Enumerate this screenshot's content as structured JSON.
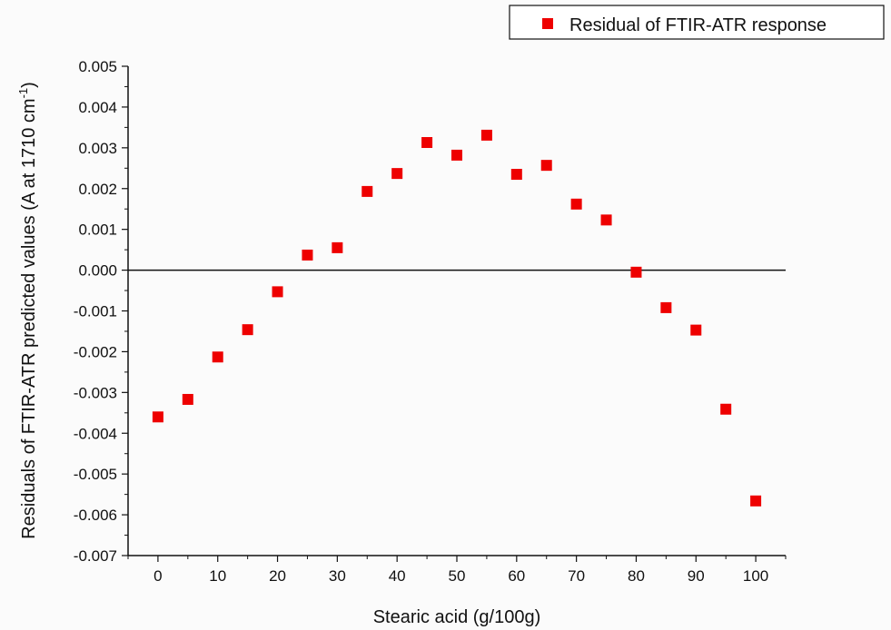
{
  "chart_data": {
    "type": "scatter",
    "xlabel": "Stearic acid (g/100g)",
    "ylabel": "Residuals of FTIR-ATR predicted values (A at 1710 cm",
    "ylabel_superscript": "-1",
    "ylabel_suffix": ")",
    "xlim": [
      -5,
      105
    ],
    "ylim": [
      -0.007,
      0.005
    ],
    "x_ticks": [
      "0",
      "10",
      "20",
      "30",
      "40",
      "50",
      "60",
      "70",
      "80",
      "90",
      "100"
    ],
    "y_ticks": [
      "0.005",
      "0.004",
      "0.003",
      "0.002",
      "0.001",
      "0.000",
      "-0.001",
      "-0.002",
      "-0.003",
      "-0.004",
      "-0.005",
      "-0.006",
      "-0.007"
    ],
    "grid": false,
    "zero_line": 0,
    "legend_position": "top-right",
    "series": [
      {
        "name": "Residual of FTIR-ATR response",
        "color": "#ee0000",
        "marker": "square",
        "x": [
          0,
          5,
          10,
          15,
          20,
          25,
          30,
          35,
          40,
          45,
          50,
          55,
          60,
          65,
          70,
          75,
          80,
          85,
          90,
          95,
          100
        ],
        "y": [
          -0.0036,
          -0.00317,
          -0.00213,
          -0.00146,
          -0.00053,
          0.00037,
          0.00055,
          0.00193,
          0.00237,
          0.00313,
          0.00282,
          0.00331,
          0.00235,
          0.00257,
          0.00162,
          0.00123,
          -5e-05,
          -0.00092,
          -0.00147,
          -0.00341,
          -0.00566
        ]
      }
    ]
  }
}
